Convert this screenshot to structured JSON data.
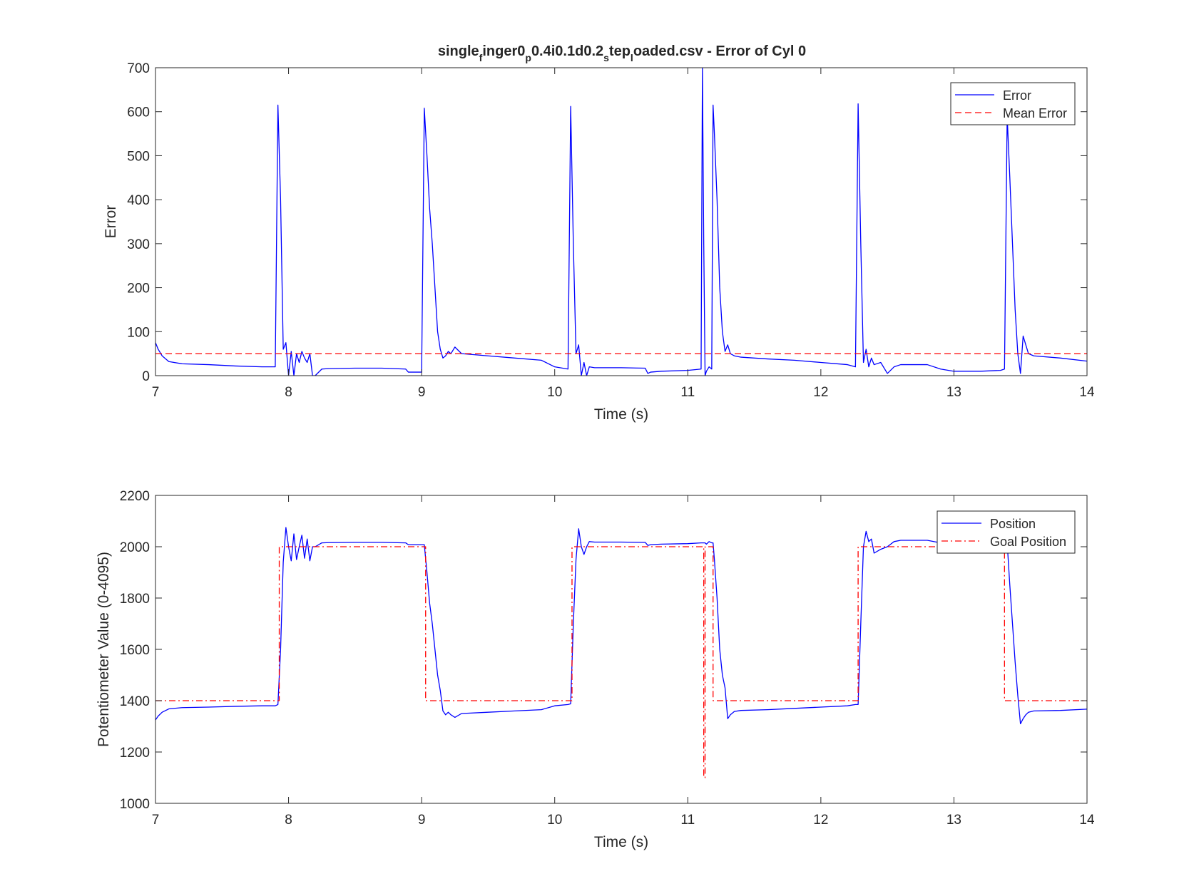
{
  "chart_data": [
    {
      "type": "line",
      "title": {
        "parts": [
          {
            "text": "single",
            "sub": false
          },
          {
            "text": "f",
            "sub": true
          },
          {
            "text": "inger0",
            "sub": false
          },
          {
            "text": "p",
            "sub": true
          },
          {
            "text": "0.4i0.1d0.2",
            "sub": false
          },
          {
            "text": "s",
            "sub": true
          },
          {
            "text": "tep",
            "sub": false
          },
          {
            "text": "l",
            "sub": true
          },
          {
            "text": "oaded.csv - Error of Cyl 0",
            "sub": false
          }
        ]
      },
      "xlabel": "Time (s)",
      "ylabel": "Error",
      "xlim": [
        7,
        14
      ],
      "ylim": [
        0,
        700
      ],
      "xticks": [
        7,
        8,
        9,
        10,
        11,
        12,
        13,
        14
      ],
      "yticks": [
        0,
        100,
        200,
        300,
        400,
        500,
        600,
        700
      ],
      "grid": false,
      "legend_position": "top-right",
      "series": [
        {
          "name": "Error",
          "color": "#0000ff",
          "style": "solid",
          "x": [
            7.0,
            7.02,
            7.05,
            7.1,
            7.2,
            7.4,
            7.6,
            7.8,
            7.9,
            7.92,
            7.94,
            7.96,
            7.98,
            8.0,
            8.02,
            8.04,
            8.06,
            8.08,
            8.1,
            8.12,
            8.14,
            8.16,
            8.18,
            8.2,
            8.25,
            8.3,
            8.5,
            8.7,
            8.88,
            8.9,
            9.0,
            9.02,
            9.04,
            9.06,
            9.08,
            9.1,
            9.12,
            9.14,
            9.16,
            9.18,
            9.2,
            9.22,
            9.25,
            9.3,
            9.5,
            9.7,
            9.9,
            10.0,
            10.1,
            10.12,
            10.14,
            10.16,
            10.18,
            10.2,
            10.22,
            10.24,
            10.26,
            10.3,
            10.5,
            10.68,
            10.7,
            10.72,
            10.8,
            11.0,
            11.1,
            11.11,
            11.12,
            11.13,
            11.14,
            11.16,
            11.18,
            11.19,
            11.2,
            11.22,
            11.24,
            11.26,
            11.28,
            11.3,
            11.32,
            11.35,
            11.4,
            11.6,
            11.8,
            12.0,
            12.2,
            12.26,
            12.28,
            12.3,
            12.32,
            12.34,
            12.36,
            12.38,
            12.4,
            12.45,
            12.5,
            12.55,
            12.6,
            12.8,
            12.9,
            13.0,
            13.2,
            13.35,
            13.38,
            13.4,
            13.42,
            13.44,
            13.46,
            13.48,
            13.5,
            13.52,
            13.54,
            13.56,
            13.6,
            13.8,
            14.0
          ],
          "y": [
            75,
            60,
            45,
            32,
            27,
            25,
            22,
            20,
            20,
            615,
            400,
            60,
            75,
            0,
            55,
            0,
            50,
            30,
            55,
            40,
            30,
            50,
            0,
            0,
            15,
            16,
            17,
            17,
            15,
            8,
            8,
            608,
            500,
            380,
            300,
            200,
            100,
            60,
            40,
            45,
            55,
            50,
            65,
            50,
            45,
            40,
            35,
            20,
            15,
            612,
            300,
            50,
            70,
            0,
            30,
            0,
            20,
            18,
            18,
            17,
            5,
            8,
            10,
            12,
            15,
            700,
            300,
            0,
            10,
            20,
            15,
            615,
            550,
            400,
            200,
            100,
            55,
            70,
            50,
            45,
            42,
            38,
            35,
            30,
            25,
            20,
            618,
            300,
            30,
            60,
            20,
            40,
            25,
            30,
            5,
            20,
            25,
            25,
            15,
            10,
            10,
            12,
            15,
            590,
            450,
            300,
            150,
            50,
            5,
            90,
            70,
            50,
            45,
            40,
            33
          ]
        },
        {
          "name": "Mean Error",
          "color": "#ff0000",
          "style": "dashed",
          "x": [
            7,
            14
          ],
          "y": [
            50,
            50
          ]
        }
      ]
    },
    {
      "type": "line",
      "title": {
        "parts": []
      },
      "xlabel": "Time (s)",
      "ylabel": "Potentiometer Value (0-4095)",
      "xlim": [
        7,
        14
      ],
      "ylim": [
        1000,
        2200
      ],
      "xticks": [
        7,
        8,
        9,
        10,
        11,
        12,
        13,
        14
      ],
      "yticks": [
        1000,
        1200,
        1400,
        1600,
        1800,
        2000,
        2200
      ],
      "grid": false,
      "legend_position": "top-right",
      "series": [
        {
          "name": "Position",
          "color": "#0000ff",
          "style": "solid",
          "x": [
            7.0,
            7.02,
            7.05,
            7.1,
            7.2,
            7.4,
            7.6,
            7.8,
            7.9,
            7.92,
            7.94,
            7.96,
            7.98,
            8.0,
            8.02,
            8.04,
            8.06,
            8.08,
            8.1,
            8.12,
            8.14,
            8.16,
            8.18,
            8.2,
            8.25,
            8.3,
            8.5,
            8.7,
            8.88,
            8.9,
            9.0,
            9.02,
            9.04,
            9.06,
            9.08,
            9.1,
            9.12,
            9.14,
            9.16,
            9.18,
            9.2,
            9.22,
            9.25,
            9.3,
            9.5,
            9.7,
            9.9,
            10.0,
            10.1,
            10.12,
            10.14,
            10.16,
            10.18,
            10.2,
            10.22,
            10.24,
            10.26,
            10.3,
            10.5,
            10.68,
            10.7,
            10.72,
            10.8,
            11.0,
            11.1,
            11.11,
            11.12,
            11.13,
            11.14,
            11.16,
            11.18,
            11.19,
            11.2,
            11.22,
            11.24,
            11.26,
            11.28,
            11.3,
            11.32,
            11.35,
            11.4,
            11.6,
            11.8,
            12.0,
            12.2,
            12.26,
            12.28,
            12.3,
            12.32,
            12.34,
            12.36,
            12.38,
            12.4,
            12.45,
            12.5,
            12.55,
            12.6,
            12.8,
            12.9,
            13.0,
            13.2,
            13.35,
            13.38,
            13.4,
            13.42,
            13.44,
            13.46,
            13.48,
            13.5,
            13.52,
            13.54,
            13.56,
            13.6,
            13.8,
            14.0
          ],
          "y": [
            1325,
            1340,
            1355,
            1368,
            1373,
            1375,
            1378,
            1380,
            1380,
            1385,
            1600,
            1940,
            2075,
            2000,
            1945,
            2050,
            1950,
            2000,
            2045,
            1955,
            2030,
            1945,
            2000,
            2000,
            2015,
            2016,
            2017,
            2017,
            2015,
            2008,
            2008,
            2008,
            1900,
            1780,
            1700,
            1600,
            1500,
            1440,
            1360,
            1345,
            1355,
            1345,
            1335,
            1350,
            1355,
            1360,
            1365,
            1380,
            1385,
            1388,
            1700,
            1950,
            2070,
            2000,
            1970,
            2000,
            2020,
            2018,
            2018,
            2017,
            2005,
            2008,
            2010,
            2012,
            2015,
            2015,
            2015,
            2015,
            2010,
            2020,
            2015,
            2015,
            1950,
            1800,
            1600,
            1500,
            1450,
            1330,
            1345,
            1358,
            1362,
            1365,
            1370,
            1375,
            1380,
            1385,
            1385,
            1700,
            2000,
            2060,
            2020,
            2030,
            1975,
            1990,
            2000,
            2020,
            2025,
            2025,
            2015,
            2010,
            2010,
            2015,
            2015,
            2015,
            1850,
            1700,
            1550,
            1420,
            1310,
            1330,
            1345,
            1355,
            1360,
            1362,
            1367
          ]
        },
        {
          "name": "Goal Position",
          "color": "#ff0000",
          "style": "dashdot",
          "x": [
            7,
            7.93,
            7.93,
            9.03,
            9.03,
            10.13,
            10.13,
            11.12,
            11.12,
            11.13,
            11.13,
            11.19,
            11.19,
            12.28,
            12.28,
            13.38,
            13.38,
            14
          ],
          "y": [
            1400,
            1400,
            2000,
            2000,
            1400,
            1400,
            2000,
            2000,
            1100,
            1100,
            2000,
            2000,
            1400,
            1400,
            2000,
            2000,
            1400,
            1400
          ]
        }
      ]
    }
  ]
}
